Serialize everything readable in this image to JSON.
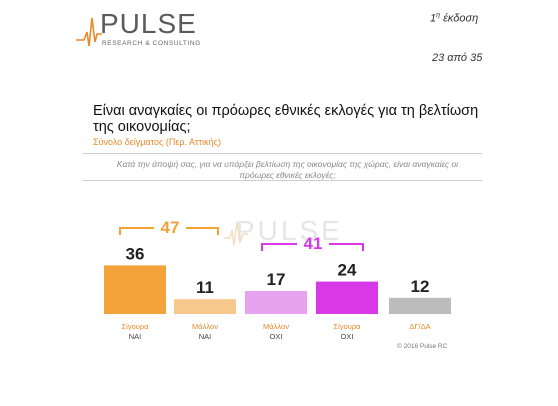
{
  "header": {
    "logo_word": "PULSE",
    "logo_sub": "RESEARCH & CONSULTING",
    "edition_num": "1",
    "edition_sup": "η",
    "edition_word": "έκδοση",
    "page_label": "23 από 35"
  },
  "title": "Είναι αναγκαίες οι πρόωρες εθνικές εκλογές για τη βελτίωση της οικονομίας;",
  "subtitle": "Σύνολο δείγματος (Περ. Αττικής)",
  "question": "Κατά την άποψή σας, για να υπάρξει βελτίωση της οικονομίας της χώρας, είναι αναγκαίες οι πρόωρες εθνικές εκλογές;",
  "copyright": "© 2016 Pulse RC",
  "watermark": "PULSE",
  "colors": {
    "orange": "#f4a23a",
    "light_orange": "#f7c88c",
    "magenta": "#d838e6",
    "light_magenta": "#e7a2f0",
    "gray": "#bcbcbc",
    "subtitle_orange": "#e8892b"
  },
  "chart_data": {
    "type": "bar",
    "categories": [
      "Σίγουρα ΝΑΙ",
      "Μάλλον ΝΑΙ",
      "Μάλλον ΟΧΙ",
      "Σίγουρα ΟΧΙ",
      "ΔΓ/ΔΑ"
    ],
    "values": [
      36,
      11,
      17,
      24,
      12
    ],
    "bar_colors": [
      "#f4a23a",
      "#f7c88c",
      "#e7a2f0",
      "#d838e6",
      "#bcbcbc"
    ],
    "groups": [
      {
        "label": "47",
        "members": [
          0,
          1
        ],
        "color": "#f4a23a"
      },
      {
        "label": "41",
        "members": [
          2,
          3
        ],
        "color": "#d838e6"
      }
    ],
    "ylim": [
      0,
      60
    ],
    "grid": false,
    "legend": "none"
  }
}
